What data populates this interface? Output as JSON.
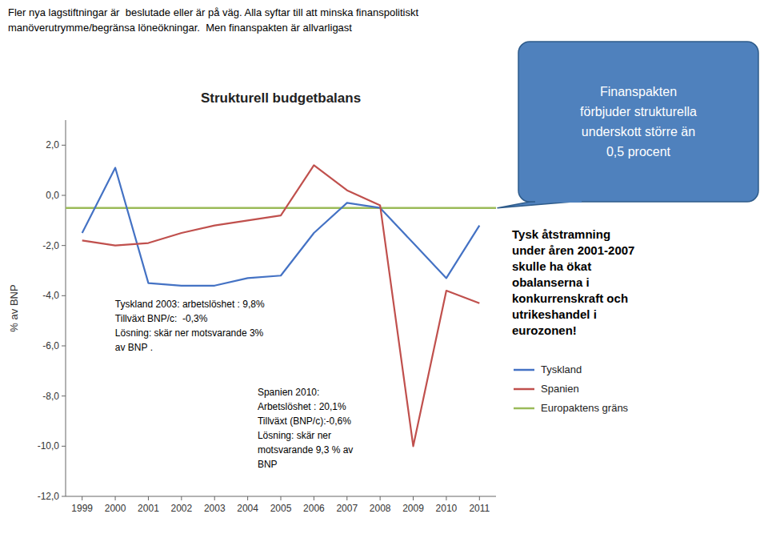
{
  "chart_data": {
    "type": "line",
    "title": "Strukturell budgetbalans",
    "header": "Fler nya lagstiftningar är  beslutade eller är på väg. Alla syftar till att minska finanspolitiskt\nmanöverutrymme/begränsa löneökningar.  Men finanspakten är allvarligast",
    "ylabel": "% av BNP",
    "x": [
      1999,
      2000,
      2001,
      2002,
      2003,
      2004,
      2005,
      2006,
      2007,
      2008,
      2009,
      2010,
      2011
    ],
    "xlim": [
      1998.5,
      2011.5
    ],
    "xticks": [
      1999,
      2000,
      2001,
      2002,
      2003,
      2004,
      2005,
      2006,
      2007,
      2008,
      2009,
      2010,
      2011
    ],
    "ylim": [
      -12,
      3
    ],
    "yticks": [
      {
        "value": 2.0,
        "label": "2,0"
      },
      {
        "value": 0.0,
        "label": "0,0"
      },
      {
        "value": -2.0,
        "label": "-2,0"
      },
      {
        "value": -4.0,
        "label": "-4,0"
      },
      {
        "value": -6.0,
        "label": "-6,0"
      },
      {
        "value": -8.0,
        "label": "-8,0"
      },
      {
        "value": -10.0,
        "label": "-10,0"
      },
      {
        "value": -12.0,
        "label": "-12,0"
      }
    ],
    "series": [
      {
        "name": "Tyskland",
        "color": "#4472C4",
        "values": [
          -1.5,
          1.1,
          -3.5,
          -3.6,
          -3.6,
          -3.3,
          -3.2,
          -1.5,
          -0.3,
          -0.5,
          -1.9,
          -3.3,
          -1.2
        ]
      },
      {
        "name": "Spanien",
        "color": "#C0504D",
        "values": [
          -1.8,
          -2.0,
          -1.9,
          -1.5,
          -1.2,
          -1.0,
          -0.8,
          1.2,
          0.2,
          -0.4,
          -10.0,
          -3.8,
          -4.3
        ]
      }
    ],
    "hlines": [
      {
        "name": "Europaktens gräns",
        "value": -0.5,
        "color": "#9BBB59"
      }
    ],
    "annotations": [
      "Tyskland 2003: arbetslöshet : 9,8%\nTillväxt BNP/c:  -0,3%\nLösning: skär ner motsvarande 3%\nav BNP .",
      "Spanien 2010:\nArbetslöshet : 20,1%\nTillväxt (BNP/c):-0,6%\nLösning: skär ner\nmotsvarande 9,3 % av\nBNP"
    ],
    "callout": {
      "text": "Finanspakten\nförbjuder strukturella\nunderskott större än\n0,5 procent",
      "color": "#4F81BD",
      "edge_color": "#2E5B8A"
    },
    "note": "Tysk åtstramning\nunder åren 2001-2007\nskulle ha ökat\nobalanserna i\nkonkurrenskraft och\nutrikeshandel i\neurozonen!",
    "legend": "right",
    "grid": false
  }
}
